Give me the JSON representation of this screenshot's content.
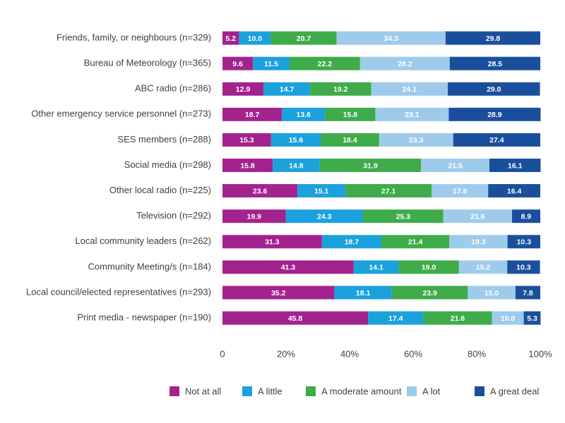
{
  "chart_data": {
    "type": "stacked-barh",
    "categories": [
      "Friends, family, or neighbours (n=329)",
      "Bureau of Meteorology (n=365)",
      "ABC radio (n=286)",
      "Other emergency service personnel (n=273)",
      "SES members (n=288)",
      "Social media (n=298)",
      "Other local radio (n=225)",
      "Television (n=292)",
      "Local community leaders (n=262)",
      "Community Meeting/s (n=184)",
      "Local council/elected representatives (n=293)",
      "Print media - newspaper (n=190)"
    ],
    "series": [
      {
        "name": "Not at all",
        "color": "#a3238e",
        "values": [
          5.2,
          9.6,
          12.9,
          18.7,
          15.3,
          15.8,
          23.6,
          19.9,
          31.3,
          41.3,
          35.2,
          45.8
        ],
        "value_labels": [
          "5.2",
          "9.6",
          "12.9",
          "18.7",
          "15.3",
          "15.8",
          "23.6",
          "19.9",
          "31.3",
          "41.3",
          "35.2",
          "45.8"
        ]
      },
      {
        "name": "A little",
        "color": "#1ba1dc",
        "values": [
          10.0,
          11.5,
          14.7,
          13.6,
          15.6,
          14.8,
          15.1,
          24.3,
          18.7,
          14.1,
          18.1,
          17.4
        ],
        "value_labels": [
          "10.0",
          "11.5",
          "14.7",
          "13.6",
          "15.6",
          "14.8",
          "15.1",
          "24.3",
          "18.7",
          "14.1",
          "18.1",
          "17.4"
        ]
      },
      {
        "name": "A moderate amount",
        "color": "#3fab4a",
        "values": [
          20.7,
          22.2,
          19.2,
          15.8,
          18.4,
          31.9,
          27.1,
          25.3,
          21.4,
          19.0,
          23.9,
          21.6
        ],
        "value_labels": [
          "20.7",
          "22.2",
          "19.2",
          "15.8",
          "18.4",
          "31.9",
          "27.1",
          "25.3",
          "21.4",
          "19.0",
          "23.9",
          "21.6"
        ]
      },
      {
        "name": "A lot",
        "color": "#9ecbeb",
        "values": [
          34.3,
          28.2,
          24.1,
          23.1,
          23.3,
          21.5,
          17.8,
          21.6,
          18.3,
          15.2,
          15.0,
          10.0
        ],
        "value_labels": [
          "34.3",
          "28.2",
          "24.1",
          "23.1",
          "23.3",
          "21.5",
          "17.8",
          "21.6",
          "18.3",
          "15.2",
          "15.0",
          "10.0"
        ]
      },
      {
        "name": "A great deal",
        "color": "#1a4f9c",
        "values": [
          29.8,
          28.5,
          29.0,
          28.9,
          27.4,
          16.1,
          16.4,
          8.9,
          10.3,
          10.3,
          7.8,
          5.3
        ],
        "value_labels": [
          "29.8",
          "28.5",
          "29.0",
          "28.9",
          "27.4",
          "16.1",
          "16.4",
          "8.9",
          "10.3",
          "10.3",
          "7.8",
          "5.3"
        ]
      }
    ],
    "xlim": [
      0,
      100
    ],
    "xticks": [
      0,
      {
        "value": 20,
        "label": "20%"
      },
      {
        "value": 40,
        "label": "40%"
      },
      {
        "value": 60,
        "label": "60%"
      },
      {
        "value": 80,
        "label": "80%"
      },
      {
        "value": 100,
        "label": "100%"
      }
    ],
    "legend": "bottom"
  }
}
